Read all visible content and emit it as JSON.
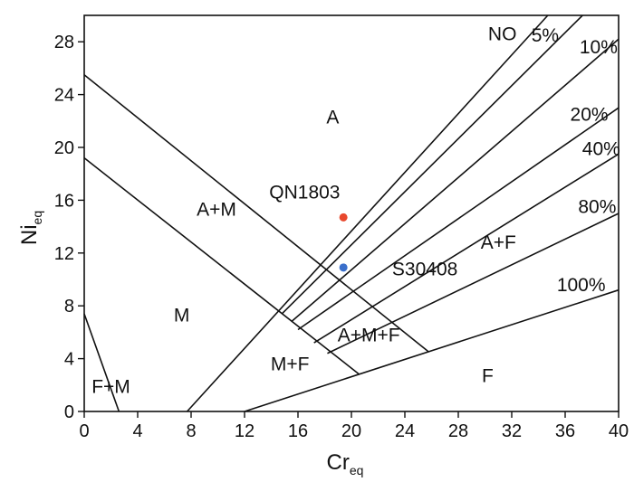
{
  "chart_data": {
    "type": "scatter",
    "xlabel": {
      "main": "Cr",
      "sub": "eq"
    },
    "ylabel": {
      "main": "Ni",
      "sub": "eq"
    },
    "xlim": [
      0,
      40
    ],
    "ylim": [
      0,
      30
    ],
    "xticks": [
      0,
      4,
      8,
      12,
      16,
      20,
      24,
      28,
      32,
      36,
      40
    ],
    "yticks": [
      0,
      4,
      8,
      12,
      16,
      20,
      24,
      28
    ],
    "boundary_lines": [
      {
        "from": [
          0,
          25.5
        ],
        "to": [
          25.8,
          4.5
        ]
      },
      {
        "from": [
          0,
          19.2
        ],
        "to": [
          20.6,
          2.8
        ]
      },
      {
        "from": [
          0,
          7.4
        ],
        "to": [
          2.6,
          0
        ]
      },
      {
        "from": [
          7.7,
          0
        ],
        "to": [
          34.7,
          30
        ]
      },
      {
        "from": [
          14.8,
          7.4
        ],
        "to": [
          37.3,
          30
        ]
      },
      {
        "from": [
          15.5,
          6.8
        ],
        "to": [
          40,
          28.2
        ]
      },
      {
        "from": [
          16.0,
          6.2
        ],
        "to": [
          40,
          23.0
        ]
      },
      {
        "from": [
          17.2,
          5.2
        ],
        "to": [
          40,
          19.5
        ]
      },
      {
        "from": [
          18.2,
          4.4
        ],
        "to": [
          40,
          15.0
        ]
      },
      {
        "from": [
          12.0,
          0
        ],
        "to": [
          40,
          9.2
        ]
      }
    ],
    "line_labels": [
      {
        "text": "5%",
        "x": 34.5,
        "y": 28.5
      },
      {
        "text": "10%",
        "x": 38.5,
        "y": 27.6
      },
      {
        "text": "20%",
        "x": 37.8,
        "y": 22.5
      },
      {
        "text": "40%",
        "x": 38.7,
        "y": 19.9
      },
      {
        "text": "80%",
        "x": 38.4,
        "y": 15.5
      },
      {
        "text": "100%",
        "x": 37.2,
        "y": 9.6
      }
    ],
    "region_labels": [
      {
        "text": "A",
        "x": 18.6,
        "y": 22.3
      },
      {
        "text": "NO",
        "x": 31.3,
        "y": 28.6
      },
      {
        "text": "A+M",
        "x": 9.9,
        "y": 15.3
      },
      {
        "text": "M",
        "x": 7.3,
        "y": 7.3
      },
      {
        "text": "F+M",
        "x": 2.0,
        "y": 1.9
      },
      {
        "text": "M+F",
        "x": 15.4,
        "y": 3.6
      },
      {
        "text": "A+M+F",
        "x": 21.3,
        "y": 5.8
      },
      {
        "text": "A+F",
        "x": 31.0,
        "y": 12.8
      },
      {
        "text": "F",
        "x": 30.2,
        "y": 2.7
      }
    ],
    "points": [
      {
        "name": "QN1803",
        "x": 19.4,
        "y": 14.7,
        "color": "#e8482d",
        "label_pos": {
          "x": 16.5,
          "y": 16.6
        }
      },
      {
        "name": "S30408",
        "x": 19.4,
        "y": 10.9,
        "color": "#3a6fcb",
        "label_pos": {
          "x": 25.5,
          "y": 10.8
        }
      }
    ],
    "grid": false,
    "legend": "none"
  }
}
